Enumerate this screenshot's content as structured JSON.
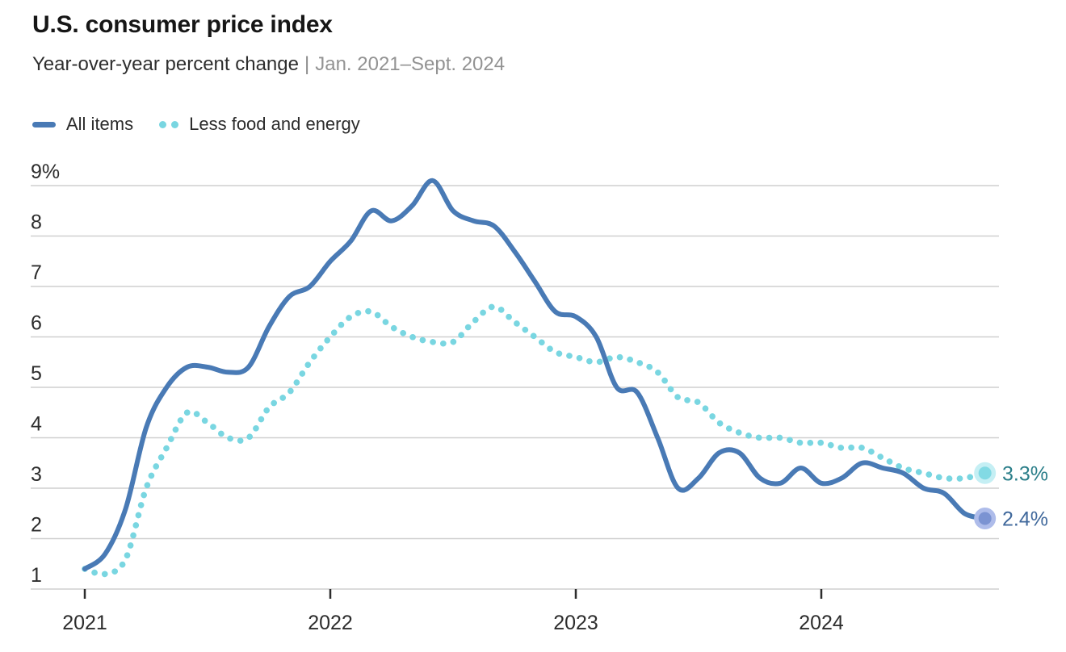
{
  "header": {
    "title": "U.S. consumer price index",
    "subtitle_main": "Year-over-year percent change",
    "subtitle_separator": "|",
    "subtitle_range": "Jan. 2021–Sept. 2024"
  },
  "legend": {
    "items": [
      {
        "label": "All items",
        "swatch": "solid-dash",
        "color": "#497ab5"
      },
      {
        "label": "Less food and energy",
        "swatch": "two-dots",
        "color": "#79d6e1"
      }
    ]
  },
  "colors": {
    "gridline": "#cfcfcf",
    "axis_tick": "#2d2d2d",
    "axis_text": "#2d2d2d",
    "subtitle_gray": "#939393",
    "separator_gray": "#8a8a8a"
  },
  "chart_data": {
    "type": "line",
    "title": "U.S. consumer price index",
    "subtitle": "Year-over-year percent change | Jan. 2021–Sept. 2024",
    "ylabel": "percent",
    "ylim": [
      1,
      9
    ],
    "grid": "horizontal",
    "legend_position": "top-left",
    "yticks": [
      {
        "value": 1,
        "label": "1"
      },
      {
        "value": 2,
        "label": "2"
      },
      {
        "value": 3,
        "label": "3"
      },
      {
        "value": 4,
        "label": "4"
      },
      {
        "value": 5,
        "label": "5"
      },
      {
        "value": 6,
        "label": "6"
      },
      {
        "value": 7,
        "label": "7"
      },
      {
        "value": 8,
        "label": "8"
      },
      {
        "value": 9,
        "label": "9%"
      }
    ],
    "xticks": [
      {
        "month_index": 0,
        "label": "2021"
      },
      {
        "month_index": 12,
        "label": "2022"
      },
      {
        "month_index": 24,
        "label": "2023"
      },
      {
        "month_index": 36,
        "label": "2024"
      }
    ],
    "x": [
      "2021-01",
      "2021-02",
      "2021-03",
      "2021-04",
      "2021-05",
      "2021-06",
      "2021-07",
      "2021-08",
      "2021-09",
      "2021-10",
      "2021-11",
      "2021-12",
      "2022-01",
      "2022-02",
      "2022-03",
      "2022-04",
      "2022-05",
      "2022-06",
      "2022-07",
      "2022-08",
      "2022-09",
      "2022-10",
      "2022-11",
      "2022-12",
      "2023-01",
      "2023-02",
      "2023-03",
      "2023-04",
      "2023-05",
      "2023-06",
      "2023-07",
      "2023-08",
      "2023-09",
      "2023-10",
      "2023-11",
      "2023-12",
      "2024-01",
      "2024-02",
      "2024-03",
      "2024-04",
      "2024-05",
      "2024-06",
      "2024-07",
      "2024-08",
      "2024-09"
    ],
    "series": [
      {
        "name": "Less food and energy",
        "style": "dotted",
        "color": "#79d6e1",
        "end_label": "3.3%",
        "end_label_color": "#2a7e89",
        "marker": {
          "dot": "#82dae4",
          "halo": "#c5eff4"
        },
        "values": [
          1.4,
          1.3,
          1.6,
          3.0,
          3.8,
          4.5,
          4.3,
          4.0,
          4.0,
          4.6,
          4.9,
          5.5,
          6.0,
          6.4,
          6.5,
          6.2,
          6.0,
          5.9,
          5.9,
          6.3,
          6.6,
          6.3,
          6.0,
          5.7,
          5.6,
          5.5,
          5.6,
          5.5,
          5.3,
          4.8,
          4.7,
          4.3,
          4.1,
          4.0,
          4.0,
          3.9,
          3.9,
          3.8,
          3.8,
          3.6,
          3.4,
          3.3,
          3.2,
          3.2,
          3.3
        ]
      },
      {
        "name": "All items",
        "style": "solid",
        "color": "#497ab5",
        "end_label": "2.4%",
        "end_label_color": "#41699c",
        "marker": {
          "dot": "#7b93d2",
          "halo": "#aebcea"
        },
        "values": [
          1.4,
          1.7,
          2.6,
          4.2,
          5.0,
          5.4,
          5.4,
          5.3,
          5.4,
          6.2,
          6.8,
          7.0,
          7.5,
          7.9,
          8.5,
          8.3,
          8.6,
          9.1,
          8.5,
          8.3,
          8.2,
          7.7,
          7.1,
          6.5,
          6.4,
          6.0,
          5.0,
          4.9,
          4.0,
          3.0,
          3.2,
          3.7,
          3.7,
          3.2,
          3.1,
          3.4,
          3.1,
          3.2,
          3.5,
          3.4,
          3.3,
          3.0,
          2.9,
          2.5,
          2.4
        ]
      }
    ]
  }
}
